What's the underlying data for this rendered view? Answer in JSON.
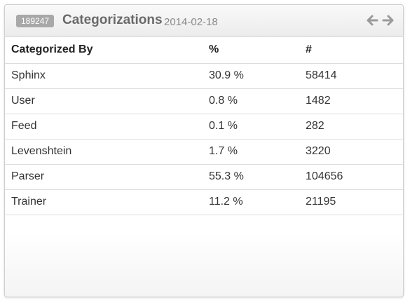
{
  "widget": {
    "id_badge": "189247",
    "title": "Categorizations",
    "date": "2014-02-18",
    "nav": {
      "prev_icon": "arrow-left-icon",
      "next_icon": "arrow-right-icon"
    }
  },
  "table": {
    "headers": [
      "Categorized By",
      "%",
      "#"
    ],
    "rows": [
      [
        "Sphinx",
        "30.9 %",
        "58414"
      ],
      [
        "User",
        "0.8 %",
        "1482"
      ],
      [
        "Feed",
        "0.1 %",
        "282"
      ],
      [
        "Levenshtein",
        "1.7 %",
        "3220"
      ],
      [
        "Parser",
        "55.3 %",
        "104656"
      ],
      [
        "Trainer",
        "11.2 %",
        "21195"
      ]
    ]
  },
  "colors": {
    "badge_bg": "#a8a8a8",
    "title_text": "#6a6a6a",
    "border": "#dddddd"
  }
}
